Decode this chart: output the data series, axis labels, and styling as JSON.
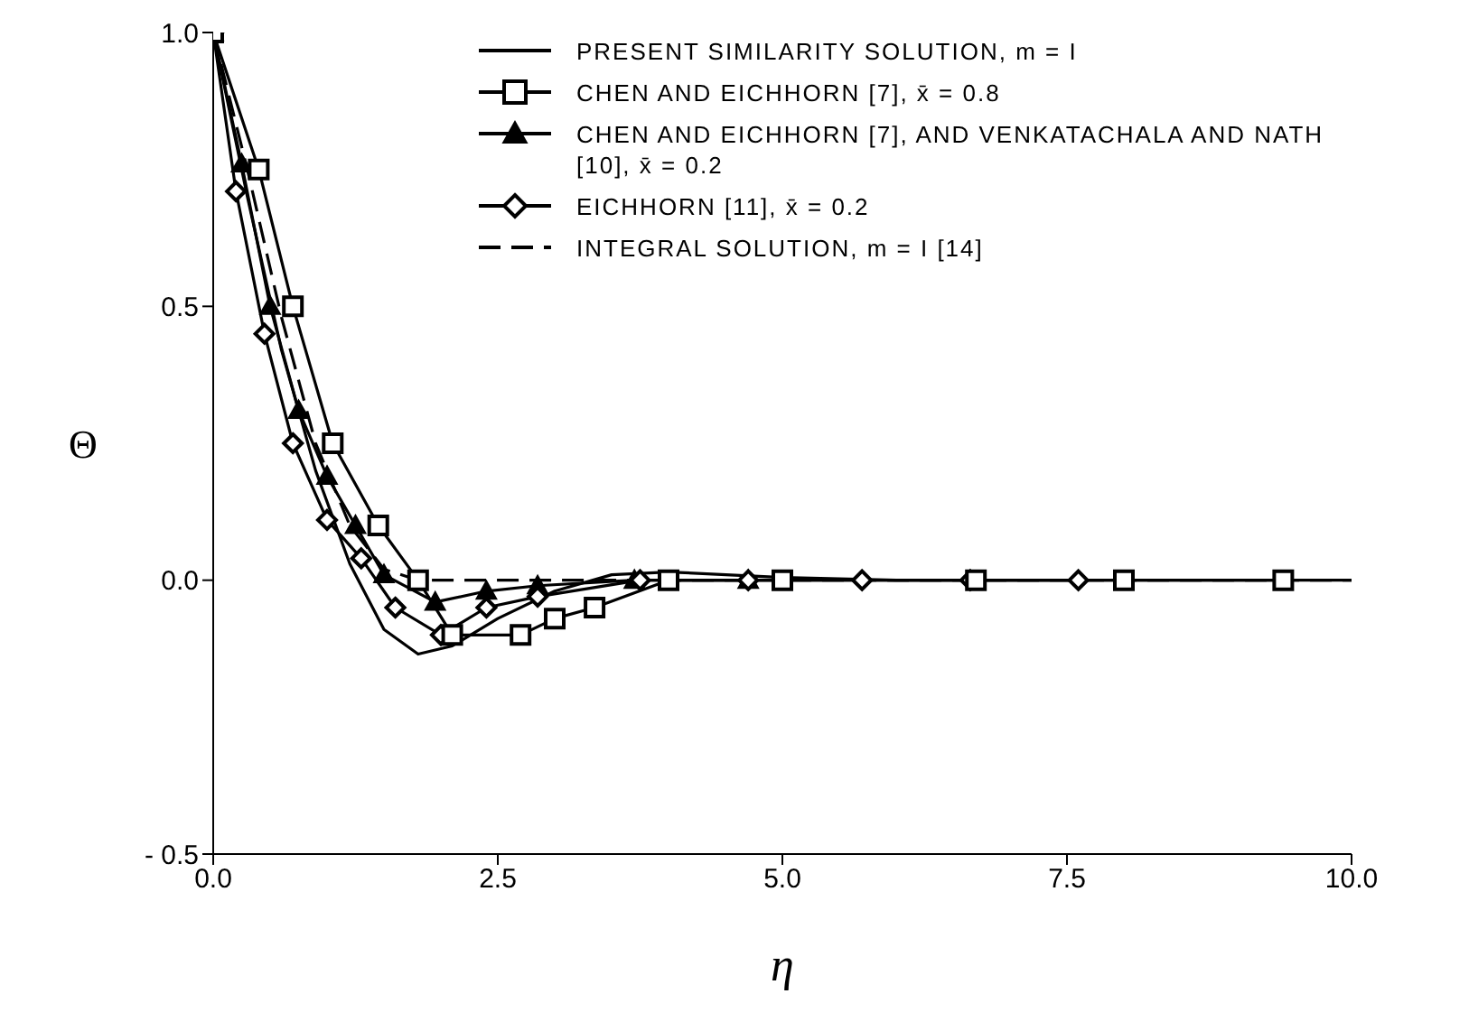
{
  "chart_data": {
    "type": "line",
    "xlabel": "η",
    "ylabel": "Θ",
    "xlim": [
      0,
      10
    ],
    "ylim": [
      -0.5,
      1.0
    ],
    "xticks": [
      {
        "value": 0,
        "label": "0.0"
      },
      {
        "value": 2.5,
        "label": "2.5"
      },
      {
        "value": 5,
        "label": "5.0"
      },
      {
        "value": 7.5,
        "label": "7.5"
      },
      {
        "value": 10,
        "label": "10.0"
      }
    ],
    "yticks": [
      {
        "value": -0.5,
        "label": "- 0.5"
      },
      {
        "value": 0,
        "label": "0.0"
      },
      {
        "value": 0.5,
        "label": "0.5"
      },
      {
        "value": 1,
        "label": "1.0"
      }
    ],
    "grid": false,
    "legend": "top right",
    "series": [
      {
        "name": "PRESENT SIMILARITY SOLUTION,  m = I",
        "color": "#000000",
        "marker": "none",
        "line_style": "solid",
        "x": [
          0,
          0.3,
          0.6,
          0.9,
          1.2,
          1.5,
          1.8,
          2.1,
          2.5,
          3.0,
          3.5,
          4.0,
          5.0,
          6.0,
          10.0
        ],
        "values": [
          1,
          0.7,
          0.42,
          0.2,
          0.03,
          -0.09,
          -0.135,
          -0.12,
          -0.07,
          -0.02,
          0.01,
          0.015,
          0.005,
          0,
          0
        ]
      },
      {
        "name": "CHEN AND EICHHORN [7],  x̄ = 0.8",
        "color": "#000000",
        "marker": "square",
        "line_style": "solid",
        "x": [
          0,
          0.4,
          0.7,
          1.05,
          1.45,
          1.8,
          2.1,
          2.7,
          3.0,
          3.35,
          4.0,
          5.0,
          6.7,
          8.0,
          9.4
        ],
        "values": [
          1,
          0.75,
          0.5,
          0.25,
          0.1,
          0.0,
          -0.1,
          -0.1,
          -0.07,
          -0.05,
          0.0,
          0.0,
          0.0,
          0.0,
          0.0
        ]
      },
      {
        "name": "CHEN AND EICHHORN [7], AND VENKATACHALA AND NATH [10],  x̄ = 0.2",
        "color": "#000000",
        "marker": "triangle",
        "line_style": "solid",
        "x": [
          0,
          0.25,
          0.5,
          0.75,
          1.0,
          1.25,
          1.5,
          1.95,
          2.4,
          2.85,
          3.7,
          4.7
        ],
        "values": [
          1,
          0.76,
          0.5,
          0.31,
          0.19,
          0.1,
          0.01,
          -0.04,
          -0.02,
          -0.01,
          0.0,
          0.0
        ]
      },
      {
        "name": "EICHHORN [11],  x̄ = 0.2",
        "color": "#000000",
        "marker": "diamond",
        "line_style": "solid",
        "x": [
          0,
          0.2,
          0.45,
          0.7,
          1.0,
          1.3,
          1.6,
          2.0,
          2.4,
          2.85,
          3.75,
          4.7,
          5.7,
          6.65,
          7.6
        ],
        "values": [
          1,
          0.71,
          0.45,
          0.25,
          0.11,
          0.04,
          -0.05,
          -0.1,
          -0.05,
          -0.03,
          0.0,
          0.0,
          0.0,
          0.0,
          0.0
        ]
      },
      {
        "name": "INTEGRAL SOLUTION,  m = I  [14]",
        "color": "#000000",
        "marker": "none",
        "line_style": "dashed",
        "x": [
          0,
          0.3,
          0.6,
          0.9,
          1.2,
          1.5,
          1.8,
          10.0
        ],
        "values": [
          1,
          0.75,
          0.48,
          0.25,
          0.1,
          0.02,
          0,
          0
        ]
      }
    ]
  }
}
